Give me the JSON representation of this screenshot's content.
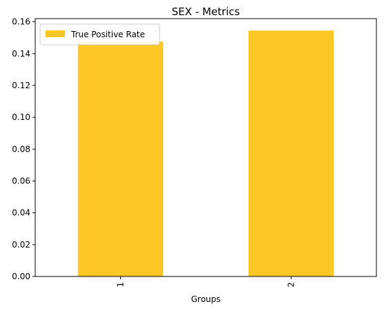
{
  "chart_data": {
    "type": "bar",
    "title": "SEX - Metrics",
    "xlabel": "Groups",
    "ylabel": "",
    "categories": [
      "1",
      "2"
    ],
    "series": [
      {
        "name": "True Positive Rate",
        "values": [
          0.1475,
          0.1545
        ],
        "color": "#fdc726"
      }
    ],
    "ylim": [
      0,
      0.162
    ],
    "yticks": [
      "0.00",
      "0.02",
      "0.04",
      "0.06",
      "0.08",
      "0.10",
      "0.12",
      "0.14",
      "0.16"
    ],
    "grid": false,
    "legend_position": "top-left"
  }
}
